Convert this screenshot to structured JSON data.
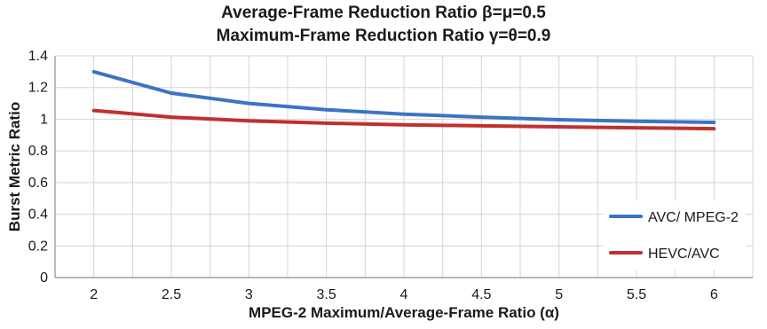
{
  "chart_data": {
    "type": "line",
    "title": "Average-Frame Reduction Ratio β=μ=0.5",
    "subtitle": "Maximum-Frame Reduction Ratio γ=θ=0.9",
    "xlabel": "MPEG-2 Maximum/Average-Frame Ratio (α)",
    "ylabel": "Burst Metric Ratio",
    "x": [
      2,
      2.5,
      3,
      3.5,
      4,
      4.5,
      5,
      5.5,
      6
    ],
    "x_tick_labels": [
      "2",
      "2.5",
      "3",
      "3.5",
      "4",
      "4.5",
      "5",
      "5.5",
      "6"
    ],
    "y_tick_labels": [
      "0",
      "0.2",
      "0.4",
      "0.6",
      "0.8",
      "1",
      "1.2",
      "1.4"
    ],
    "xlim": [
      1.75,
      6.25
    ],
    "ylim": [
      0,
      1.4
    ],
    "grid": true,
    "legend_position": "right",
    "series": [
      {
        "name": "AVC/ MPEG-2",
        "color": "#3b74c4",
        "values": [
          1.3,
          1.165,
          1.1,
          1.06,
          1.032,
          1.013,
          0.997,
          0.987,
          0.98
        ]
      },
      {
        "name": "HEVC/AVC",
        "color": "#c0302e",
        "values": [
          1.055,
          1.013,
          0.99,
          0.975,
          0.965,
          0.958,
          0.952,
          0.946,
          0.94
        ]
      }
    ]
  }
}
